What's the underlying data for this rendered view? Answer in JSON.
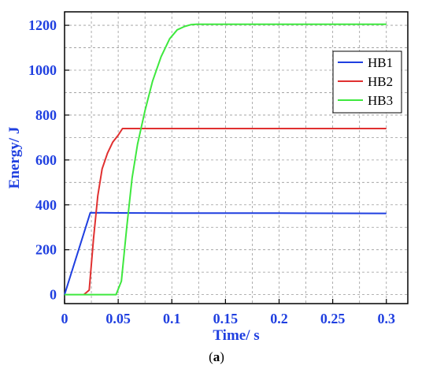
{
  "chart_data": {
    "type": "line",
    "xlabel": "Time/ s",
    "ylabel": "Energy/ J",
    "caption_open": "(",
    "caption_letter": "a",
    "caption_close": ")",
    "xlim": [
      0,
      0.32
    ],
    "ylim": [
      -40,
      1260
    ],
    "xticks": [
      0,
      0.05,
      0.1,
      0.15,
      0.2,
      0.25,
      0.3
    ],
    "xtick_labels": [
      "0",
      "0.05",
      "0.1",
      "0.15",
      "0.2",
      "0.25",
      "0.3"
    ],
    "yticks": [
      0,
      200,
      400,
      600,
      800,
      1000,
      1200
    ],
    "ytick_labels": [
      "0",
      "200",
      "400",
      "600",
      "800",
      "1000",
      "1200"
    ],
    "grid": true,
    "legend_position": "top-right",
    "tick_label_color": "#1f3fe0",
    "series": [
      {
        "name": "HB1",
        "color": "#1f3fe0",
        "x": [
          0,
          0.024,
          0.05,
          0.1,
          0.2,
          0.3
        ],
        "y": [
          0,
          365,
          364,
          363,
          363,
          362
        ]
      },
      {
        "name": "HB2",
        "color": "#e03030",
        "x": [
          0.018,
          0.023,
          0.027,
          0.031,
          0.035,
          0.04,
          0.045,
          0.05,
          0.054,
          0.1,
          0.2,
          0.3
        ],
        "y": [
          0,
          20,
          250,
          440,
          560,
          630,
          680,
          710,
          740,
          740,
          740,
          740
        ]
      },
      {
        "name": "HB3",
        "color": "#3ee83e",
        "x": [
          0,
          0.048,
          0.053,
          0.058,
          0.063,
          0.068,
          0.075,
          0.082,
          0.09,
          0.098,
          0.105,
          0.112,
          0.118,
          0.123,
          0.2,
          0.3
        ],
        "y": [
          0,
          0,
          60,
          300,
          520,
          670,
          820,
          950,
          1060,
          1140,
          1180,
          1195,
          1203,
          1205,
          1205,
          1205
        ]
      }
    ]
  }
}
